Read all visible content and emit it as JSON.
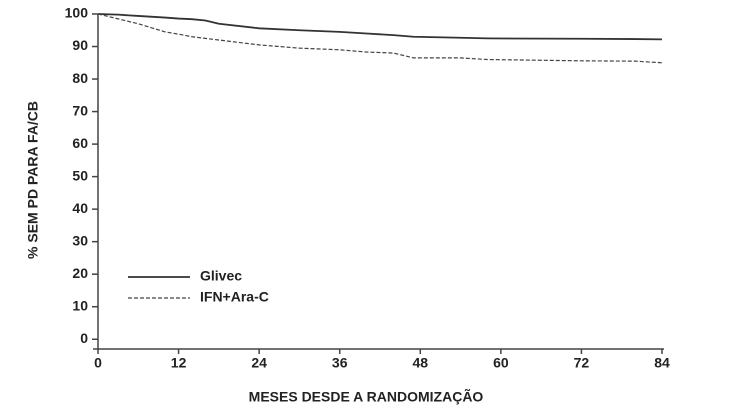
{
  "chart_data": {
    "type": "line",
    "x_label": "MESES DESDE A RANDOMIZAÇÃO",
    "y_label": "% SEM PD PARA FA/CB",
    "x": [
      0,
      3,
      6,
      10,
      12,
      14,
      16,
      18,
      24,
      30,
      36,
      40,
      44,
      47,
      54,
      58,
      72,
      80,
      84
    ],
    "series": [
      {
        "name": "Glivec",
        "color": "#333333",
        "line_style": "solid",
        "values": [
          100,
          99.8,
          99.4,
          98.9,
          98.6,
          98.4,
          98,
          97,
          95.6,
          95,
          94.5,
          94,
          93.5,
          93,
          92.7,
          92.5,
          92.4,
          92.3,
          92.2
        ]
      },
      {
        "name": "IFN+Ara-C",
        "color": "#444444",
        "line_style": "dashed",
        "values": [
          100,
          98.5,
          97,
          94.5,
          93.8,
          93,
          92.5,
          92,
          90.5,
          89.5,
          89,
          88.3,
          88,
          86.5,
          86.5,
          86,
          85.6,
          85.5,
          85
        ]
      }
    ],
    "xlim": [
      0,
      84
    ],
    "xticks": [
      0,
      12,
      24,
      36,
      48,
      60,
      72,
      84
    ],
    "ylim": [
      -3,
      100
    ],
    "yticks": [
      0,
      10,
      20,
      30,
      40,
      50,
      60,
      70,
      80,
      90,
      100
    ],
    "grid": false,
    "legend": "lower left"
  }
}
